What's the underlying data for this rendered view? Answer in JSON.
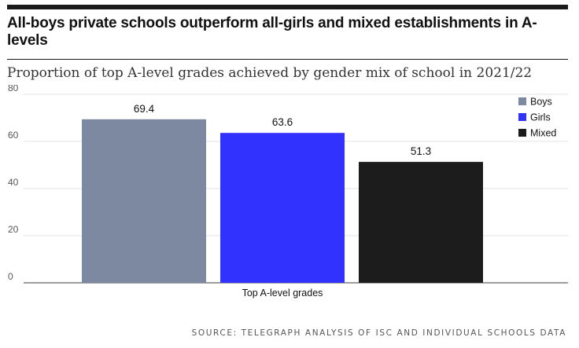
{
  "header": {
    "headline": "All-boys private schools outperform all-girls and mixed establishments in A-levels",
    "subtitle": "Proportion of top A-level grades achieved by gender mix of school in 2021/22"
  },
  "footer": {
    "source": "SOURCE: TELEGRAPH ANALYSIS OF ISC AND INDIVIDUAL SCHOOLS DATA"
  },
  "chart_data": {
    "type": "bar",
    "title": "Proportion of top A-level grades achieved by gender mix of school in 2021/22",
    "categories": [
      "Top A-level grades"
    ],
    "series": [
      {
        "name": "Boys",
        "values": [
          69.4
        ],
        "color": "#7d89a0"
      },
      {
        "name": "Girls",
        "values": [
          63.6
        ],
        "color": "#3232ff"
      },
      {
        "name": "Mixed",
        "values": [
          51.3
        ],
        "color": "#1c1c1c"
      }
    ],
    "data_labels": [
      "69.4",
      "63.6",
      "51.3"
    ],
    "xlabel": "",
    "ylabel": "",
    "ylim": [
      0,
      80
    ],
    "yticks": [
      0,
      20,
      40,
      60,
      80
    ],
    "ytick_labels": [
      "0",
      "20",
      "40",
      "60",
      "80"
    ],
    "grid": true,
    "legend_position": "top-right"
  }
}
